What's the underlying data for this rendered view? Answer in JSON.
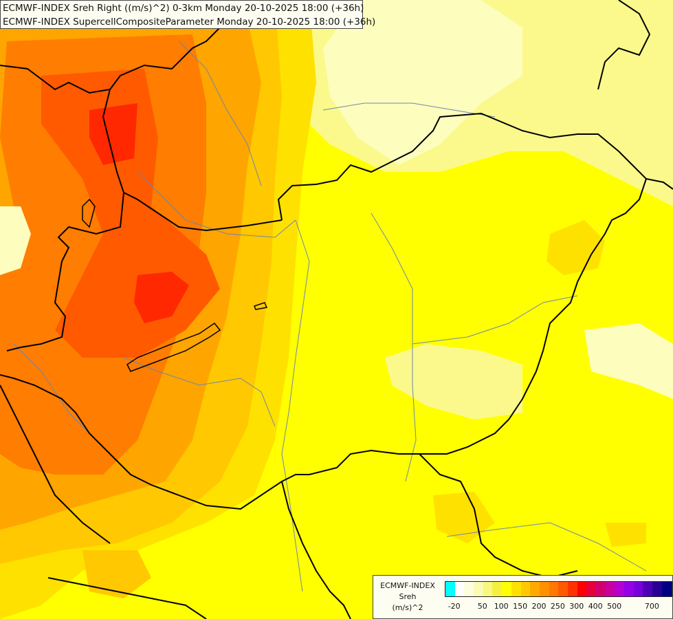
{
  "title_lines": [
    "ECMWF-INDEX Sreh Right ((m/s)^2) 0-3km Monday 20-10-2025 18:00 (+36h)",
    "ECMWF-INDEX SupercellCompositeParameter Monday 20-10-2025 18:00 (+36h)"
  ],
  "legend": {
    "title_lines": [
      "ECMWF-INDEX",
      "Sreh",
      "(m/s)^2"
    ],
    "colors": [
      "#00ffff",
      "#ffffff",
      "#fdfde0",
      "#fbfbb4",
      "#f8f880",
      "#f5f040",
      "#ffff00",
      "#ffe100",
      "#ffc800",
      "#ffaa00",
      "#ff9100",
      "#ff7800",
      "#ff5a00",
      "#ff3200",
      "#ff0000",
      "#e6003c",
      "#d2006e",
      "#c800a0",
      "#b400d2",
      "#9600e6",
      "#7800dc",
      "#5000b4",
      "#280096",
      "#000082"
    ],
    "tick_labels": [
      "-20",
      "50",
      "100",
      "150",
      "200",
      "250",
      "300",
      "400",
      "500",
      "700"
    ]
  },
  "colors": {
    "light_yellow": "#fdfdbe",
    "pale_yellow": "#fbf98c",
    "yellow": "#ffff00",
    "gold": "#ffe100",
    "amber": "#ffc800",
    "orange": "#ffa500",
    "dark_orange": "#ff7d00",
    "red_orange": "#ff5a00",
    "red": "#ff2800",
    "border_line": "#000000",
    "river_line": "#6e87aa"
  }
}
